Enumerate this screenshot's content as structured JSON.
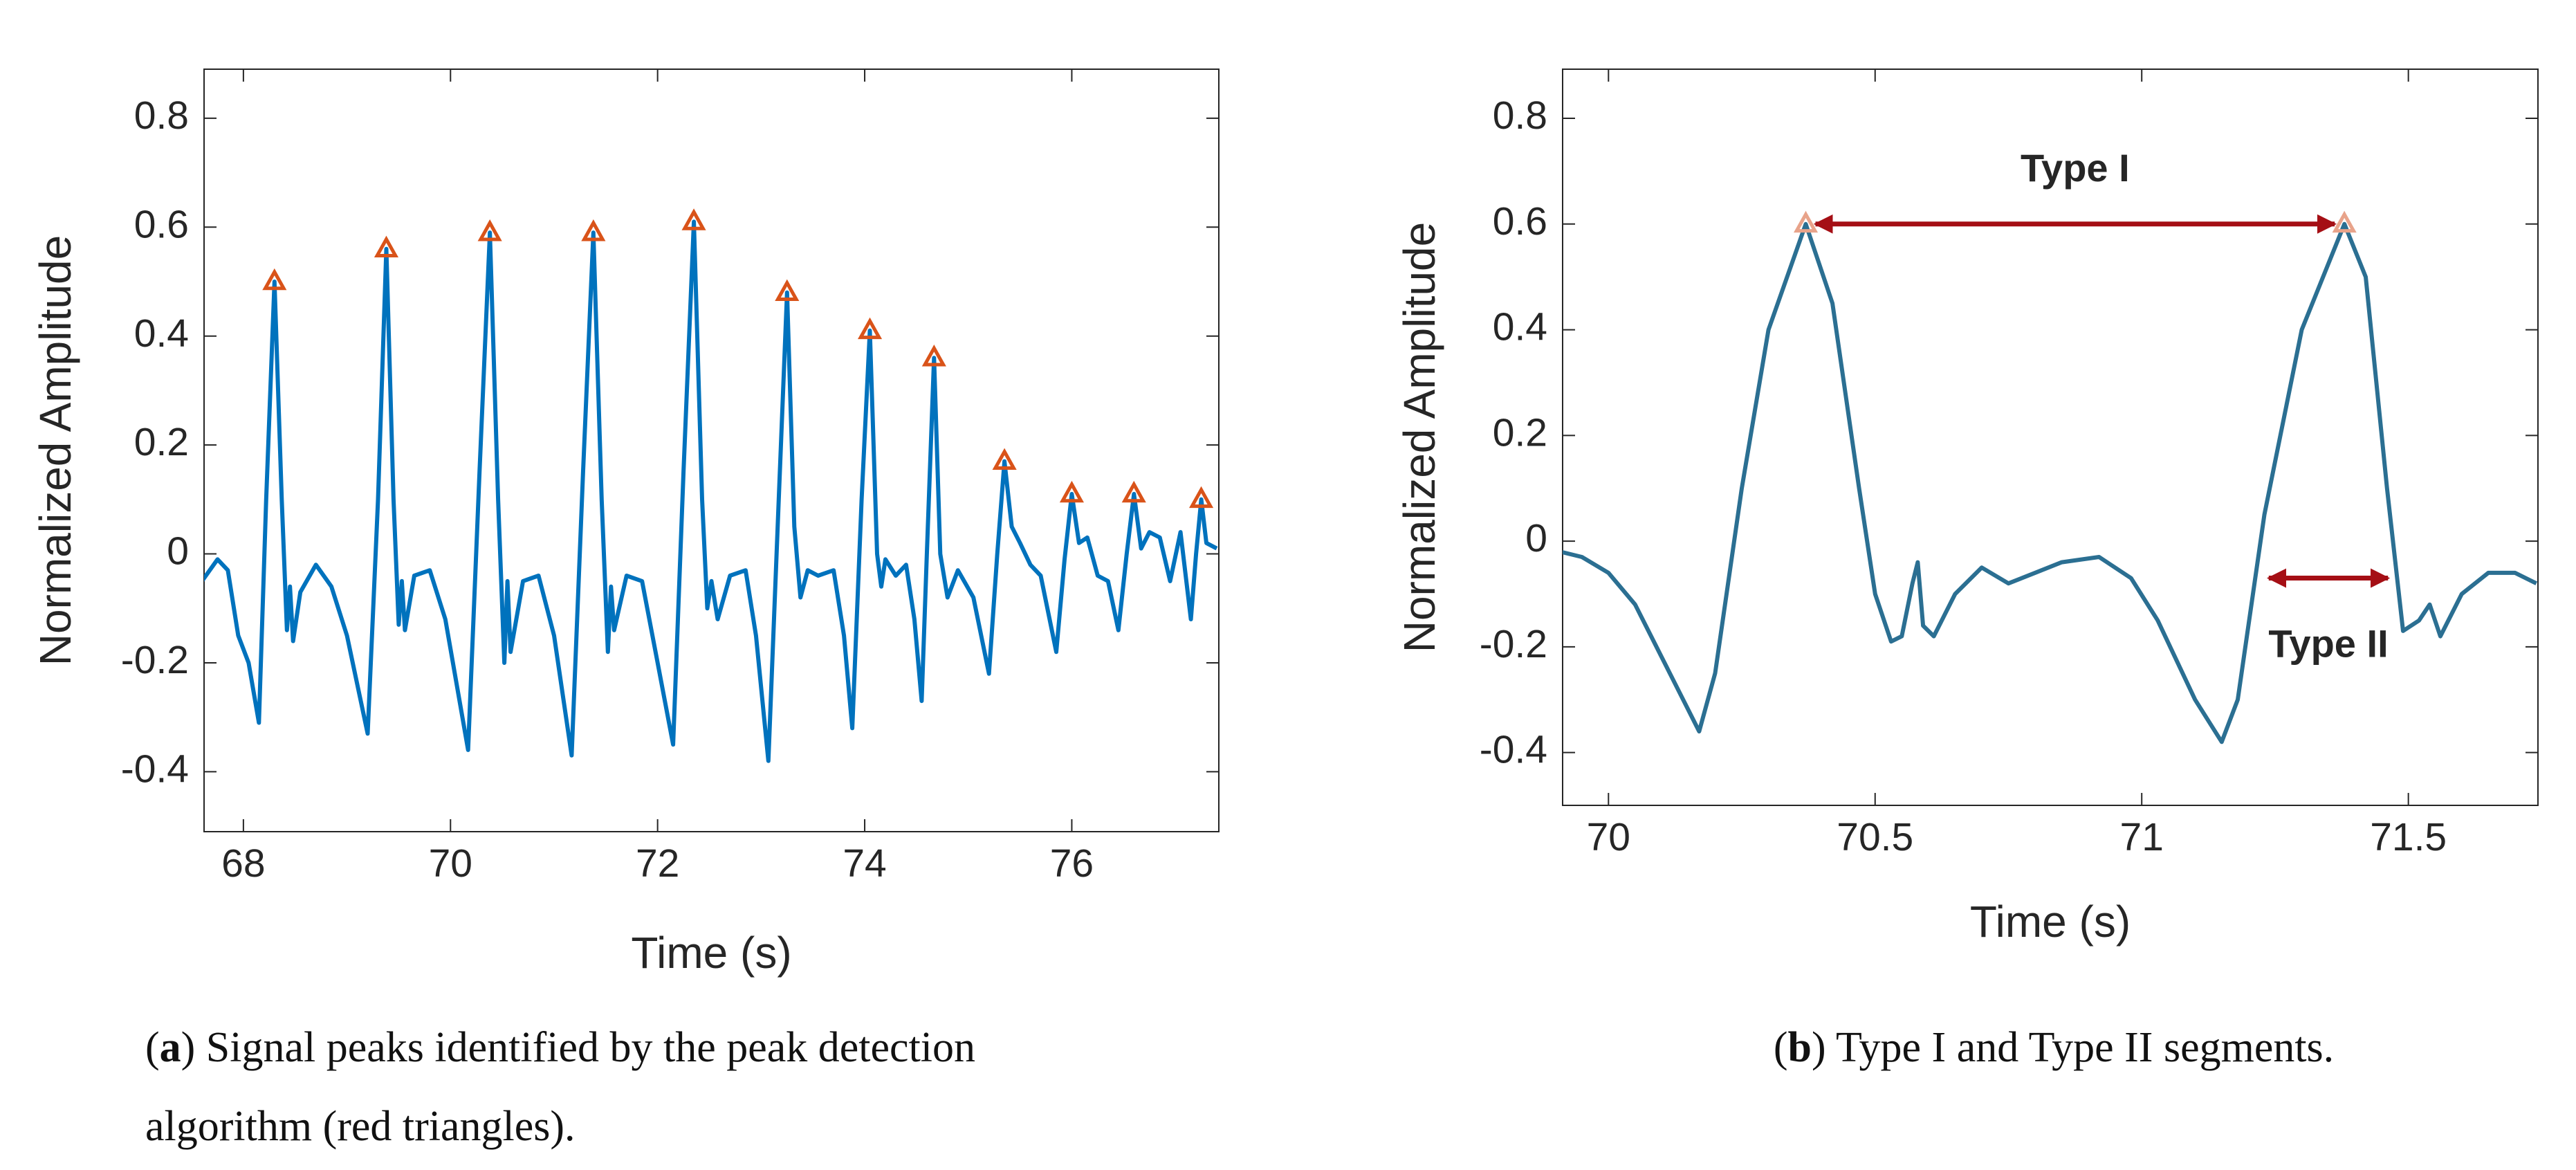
{
  "charts": [
    {
      "chart_data": {
        "type": "line",
        "ylabel": "Normalized Amplitude",
        "xlabel": "Time (s)",
        "xlim": [
          67.62,
          77.42
        ],
        "ylim": [
          -0.51,
          0.89
        ],
        "xticks": [
          68,
          70,
          72,
          74,
          76
        ],
        "yticks": [
          -0.4,
          -0.2,
          0,
          0.2,
          0.4,
          0.6,
          0.8
        ],
        "series": [
          {
            "color": "#0072bd",
            "x": [
              67.6,
              67.75,
              67.85,
              67.95,
              68.05,
              68.15,
              68.22,
              68.3,
              68.37,
              68.42,
              68.45,
              68.48,
              68.55,
              68.7,
              68.85,
              69.0,
              69.2,
              69.3,
              69.38,
              69.45,
              69.5,
              69.53,
              69.56,
              69.65,
              69.8,
              69.95,
              70.17,
              70.28,
              70.38,
              70.46,
              70.52,
              70.55,
              70.58,
              70.7,
              70.85,
              71.0,
              71.17,
              71.28,
              71.38,
              71.46,
              71.52,
              71.55,
              71.58,
              71.7,
              71.85,
              72.0,
              72.15,
              72.25,
              72.35,
              72.43,
              72.48,
              72.52,
              72.58,
              72.7,
              72.85,
              72.95,
              73.07,
              73.17,
              73.25,
              73.32,
              73.38,
              73.45,
              73.55,
              73.7,
              73.8,
              73.88,
              73.97,
              74.05,
              74.12,
              74.16,
              74.2,
              74.3,
              74.4,
              74.48,
              74.55,
              74.6,
              74.67,
              74.73,
              74.8,
              74.9,
              75.05,
              75.2,
              75.28,
              75.35,
              75.42,
              75.5,
              75.6,
              75.7,
              75.85,
              75.93,
              76.0,
              76.07,
              76.15,
              76.25,
              76.35,
              76.45,
              76.53,
              76.6,
              76.67,
              76.75,
              76.85,
              76.95,
              77.05,
              77.15,
              77.2,
              77.25,
              77.3,
              77.4
            ],
            "values": [
              -0.05,
              -0.01,
              -0.03,
              -0.15,
              -0.2,
              -0.31,
              0.1,
              0.5,
              0.1,
              -0.14,
              -0.06,
              -0.16,
              -0.07,
              -0.02,
              -0.06,
              -0.15,
              -0.33,
              0.1,
              0.56,
              0.1,
              -0.13,
              -0.05,
              -0.14,
              -0.04,
              -0.03,
              -0.12,
              -0.36,
              0.15,
              0.59,
              0.1,
              -0.2,
              -0.05,
              -0.18,
              -0.05,
              -0.04,
              -0.15,
              -0.37,
              0.15,
              0.59,
              0.1,
              -0.18,
              -0.06,
              -0.14,
              -0.04,
              -0.05,
              -0.2,
              -0.35,
              0.15,
              0.61,
              0.1,
              -0.1,
              -0.05,
              -0.12,
              -0.04,
              -0.03,
              -0.15,
              -0.38,
              0.1,
              0.48,
              0.05,
              -0.08,
              -0.03,
              -0.04,
              -0.03,
              -0.15,
              -0.32,
              0.1,
              0.41,
              0.0,
              -0.06,
              -0.01,
              -0.04,
              -0.02,
              -0.12,
              -0.27,
              0.0,
              0.36,
              0.0,
              -0.08,
              -0.03,
              -0.08,
              -0.22,
              0.0,
              0.17,
              0.05,
              0.02,
              -0.02,
              -0.04,
              -0.18,
              -0.01,
              0.11,
              0.02,
              0.03,
              -0.04,
              -0.05,
              -0.14,
              0.0,
              0.11,
              0.01,
              0.04,
              0.03,
              -0.05,
              0.04,
              -0.12,
              0.0,
              0.1,
              0.02,
              0.01
            ]
          },
          {
            "marker": "triangle",
            "color": "#d95319",
            "x": [
              68.3,
              69.38,
              70.38,
              71.38,
              72.35,
              73.25,
              74.05,
              74.67,
              75.35,
              76.0,
              76.6,
              77.25
            ],
            "values": [
              0.5,
              0.56,
              0.59,
              0.59,
              0.61,
              0.48,
              0.41,
              0.36,
              0.17,
              0.11,
              0.11,
              0.1
            ]
          }
        ],
        "caption": [
          "(",
          "a",
          ") Signal peaks identified by the peak detection",
          "algorithm (red triangles)."
        ]
      }
    },
    {
      "chart_data": {
        "type": "line",
        "ylabel": "Normalized Amplitude",
        "xlabel": "Time (s)",
        "xlim": [
          69.914,
          71.743
        ],
        "ylim": [
          -0.5,
          0.893
        ],
        "xticks": [
          70,
          70.5,
          71,
          71.5
        ],
        "yticks": [
          -0.4,
          -0.2,
          0,
          0.2,
          0.4,
          0.6,
          0.8
        ],
        "series": [
          {
            "color": "#2b6f92",
            "x": [
              69.91,
              69.95,
              70.0,
              70.05,
              70.1,
              70.17,
              70.2,
              70.25,
              70.3,
              70.37,
              70.42,
              70.47,
              70.5,
              70.53,
              70.55,
              70.57,
              70.58,
              70.59,
              70.61,
              70.65,
              70.7,
              70.75,
              70.8,
              70.85,
              70.92,
              70.98,
              71.03,
              71.1,
              71.15,
              71.18,
              71.23,
              71.3,
              71.38,
              71.42,
              71.46,
              71.49,
              71.52,
              71.54,
              71.56,
              71.6,
              71.65,
              71.7,
              71.74
            ],
            "values": [
              -0.02,
              -0.03,
              -0.06,
              -0.12,
              -0.22,
              -0.36,
              -0.25,
              0.1,
              0.4,
              0.6,
              0.45,
              0.1,
              -0.1,
              -0.19,
              -0.18,
              -0.08,
              -0.04,
              -0.16,
              -0.18,
              -0.1,
              -0.05,
              -0.08,
              -0.06,
              -0.04,
              -0.03,
              -0.07,
              -0.15,
              -0.3,
              -0.38,
              -0.3,
              0.05,
              0.4,
              0.6,
              0.5,
              0.1,
              -0.17,
              -0.15,
              -0.12,
              -0.18,
              -0.1,
              -0.06,
              -0.06,
              -0.08
            ]
          },
          {
            "marker": "triangle",
            "color": "#e8a38a",
            "x": [
              70.37,
              71.38
            ],
            "values": [
              0.6,
              0.6
            ]
          }
        ],
        "annotations": [
          {
            "text": "Type I",
            "color": "#a50f15",
            "x": [
              70.37,
              71.38
            ],
            "y": 0.6,
            "label_y": 0.7
          },
          {
            "text": "Type II",
            "color": "#a50f15",
            "x": [
              71.22,
              71.48
            ],
            "y": -0.07,
            "label_y": -0.2
          }
        ],
        "caption": [
          "(",
          "b",
          ") Type I and Type II segments."
        ]
      }
    }
  ]
}
